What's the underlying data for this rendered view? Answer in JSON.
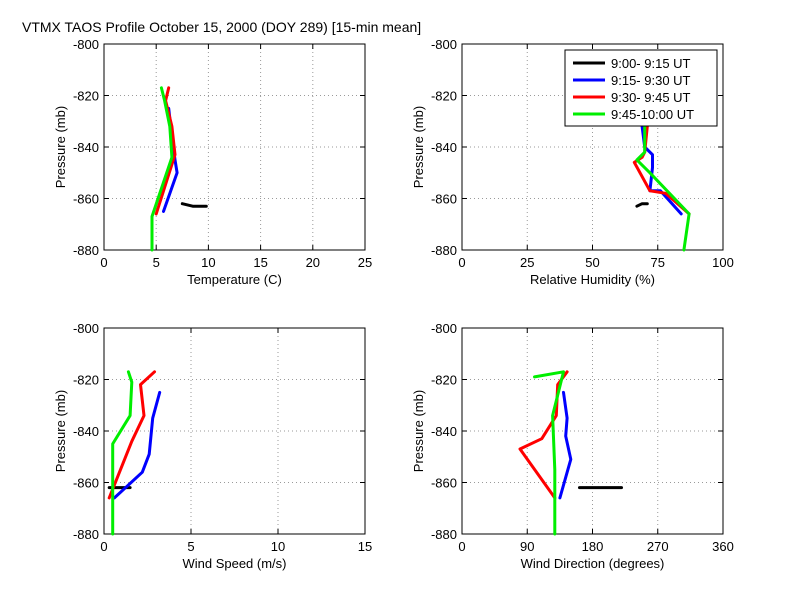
{
  "figure_title": "VTMX TAOS Profile   October 15, 2000 (DOY 289) [15-min mean]",
  "colors": {
    "axis": "#000000",
    "grid": "#9a9a9a",
    "background": "#ffffff"
  },
  "legend_entries": [
    {
      "name": "9:00- 9:15 UT",
      "color": "#000000"
    },
    {
      "name": "9:15- 9:30 UT",
      "color": "#0000ff"
    },
    {
      "name": "9:30- 9:45 UT",
      "color": "#ff0000"
    },
    {
      "name": "9:45-10:00 UT",
      "color": "#00ee00"
    }
  ],
  "chart_data": [
    {
      "type": "line",
      "xlabel": "Temperature (C)",
      "ylabel": "Pressure (mb)",
      "xlim": [
        0,
        25
      ],
      "ylim": [
        -880,
        -800
      ],
      "xticks": [
        0,
        5,
        10,
        15,
        20,
        25
      ],
      "yticks": [
        -880,
        -860,
        -840,
        -820,
        -800
      ],
      "grid": true,
      "legend": "none",
      "series": [
        {
          "name": "9:00- 9:15 UT",
          "color": "#000000",
          "points": [
            [
              7.5,
              -862
            ],
            [
              8.5,
              -863
            ],
            [
              9.8,
              -863
            ]
          ]
        },
        {
          "name": "9:15- 9:30 UT",
          "color": "#0000ff",
          "points": [
            [
              6.2,
              -825
            ],
            [
              6.4,
              -832
            ],
            [
              6.8,
              -845
            ],
            [
              7.0,
              -850
            ],
            [
              5.7,
              -865
            ]
          ]
        },
        {
          "name": "9:30- 9:45 UT",
          "color": "#ff0000",
          "points": [
            [
              6.2,
              -817
            ],
            [
              5.9,
              -822
            ],
            [
              6.5,
              -832
            ],
            [
              6.8,
              -843
            ],
            [
              5.0,
              -866
            ]
          ]
        },
        {
          "name": "9:45-10:00 UT",
          "color": "#00ee00",
          "points": [
            [
              5.5,
              -817
            ],
            [
              5.8,
              -822
            ],
            [
              6.3,
              -832
            ],
            [
              6.5,
              -844
            ],
            [
              4.6,
              -867
            ],
            [
              4.6,
              -880
            ]
          ]
        }
      ]
    },
    {
      "type": "line",
      "xlabel": "Relative Humidity (%)",
      "ylabel": "Pressure (mb)",
      "xlim": [
        0,
        100
      ],
      "ylim": [
        -880,
        -800
      ],
      "xticks": [
        0,
        25,
        50,
        75,
        100
      ],
      "yticks": [
        -880,
        -860,
        -840,
        -820,
        -800
      ],
      "grid": true,
      "legend": "top-right",
      "series": [
        {
          "name": "9:00- 9:15 UT",
          "color": "#000000",
          "points": [
            [
              67,
              -863
            ],
            [
              69,
              -862
            ],
            [
              71,
              -862
            ]
          ]
        },
        {
          "name": "9:15- 9:30 UT",
          "color": "#0000ff",
          "points": [
            [
              68,
              -825
            ],
            [
              69,
              -832
            ],
            [
              70,
              -840
            ],
            [
              73,
              -843
            ],
            [
              73,
              -848
            ],
            [
              72,
              -857
            ],
            [
              76,
              -857
            ],
            [
              84,
              -866
            ]
          ]
        },
        {
          "name": "9:30- 9:45 UT",
          "color": "#ff0000",
          "points": [
            [
              69,
              -825
            ],
            [
              71,
              -832
            ],
            [
              70,
              -842
            ],
            [
              69,
              -844
            ],
            [
              66,
              -846
            ],
            [
              72,
              -857
            ],
            [
              78,
              -858
            ],
            [
              87,
              -866
            ]
          ]
        },
        {
          "name": "9:45-10:00 UT",
          "color": "#00ee00",
          "points": [
            [
              71,
              -825
            ],
            [
              70,
              -832
            ],
            [
              70,
              -842
            ],
            [
              67,
              -845
            ],
            [
              72,
              -850
            ],
            [
              87,
              -866
            ],
            [
              85,
              -880
            ]
          ]
        }
      ]
    },
    {
      "type": "line",
      "xlabel": "Wind Speed (m/s)",
      "ylabel": "Pressure (mb)",
      "xlim": [
        0,
        15
      ],
      "ylim": [
        -880,
        -800
      ],
      "xticks": [
        0,
        5,
        10,
        15
      ],
      "yticks": [
        -880,
        -860,
        -840,
        -820,
        -800
      ],
      "grid": true,
      "legend": "none",
      "series": [
        {
          "name": "9:00- 9:15 UT",
          "color": "#000000",
          "points": [
            [
              0.3,
              -862
            ],
            [
              0.9,
              -862
            ],
            [
              1.5,
              -862
            ]
          ]
        },
        {
          "name": "9:15- 9:30 UT",
          "color": "#0000ff",
          "points": [
            [
              3.2,
              -825
            ],
            [
              2.8,
              -835
            ],
            [
              2.6,
              -849
            ],
            [
              2.2,
              -856
            ],
            [
              0.6,
              -866
            ]
          ]
        },
        {
          "name": "9:30- 9:45 UT",
          "color": "#ff0000",
          "points": [
            [
              2.9,
              -817
            ],
            [
              2.1,
              -822
            ],
            [
              2.3,
              -834
            ],
            [
              1.6,
              -844
            ],
            [
              0.3,
              -866
            ]
          ]
        },
        {
          "name": "9:45-10:00 UT",
          "color": "#00ee00",
          "points": [
            [
              1.4,
              -817
            ],
            [
              1.6,
              -821
            ],
            [
              1.5,
              -834
            ],
            [
              0.5,
              -845
            ],
            [
              0.5,
              -880
            ]
          ]
        }
      ]
    },
    {
      "type": "line",
      "xlabel": "Wind Direction (degrees)",
      "ylabel": "Pressure (mb)",
      "xlim": [
        0,
        360
      ],
      "ylim": [
        -880,
        -800
      ],
      "xticks": [
        0,
        90,
        180,
        270,
        360
      ],
      "yticks": [
        -880,
        -860,
        -840,
        -820,
        -800
      ],
      "grid": true,
      "legend": "none",
      "series": [
        {
          "name": "9:00- 9:15 UT",
          "color": "#000000",
          "points": [
            [
              162,
              -862
            ],
            [
              190,
              -862
            ],
            [
              220,
              -862
            ]
          ]
        },
        {
          "name": "9:15- 9:30 UT",
          "color": "#0000ff",
          "points": [
            [
              140,
              -825
            ],
            [
              145,
              -835
            ],
            [
              143,
              -842
            ],
            [
              150,
              -851
            ],
            [
              135,
              -866
            ]
          ]
        },
        {
          "name": "9:30- 9:45 UT",
          "color": "#ff0000",
          "points": [
            [
              145,
              -817
            ],
            [
              132,
              -822
            ],
            [
              130,
              -834
            ],
            [
              110,
              -843
            ],
            [
              80,
              -847
            ],
            [
              128,
              -866
            ]
          ]
        },
        {
          "name": "9:45-10:00 UT",
          "color": "#00ee00",
          "points": [
            [
              100,
              -819
            ],
            [
              140,
              -817
            ],
            [
              125,
              -834
            ],
            [
              128,
              -855
            ],
            [
              128,
              -880
            ]
          ]
        }
      ]
    }
  ]
}
